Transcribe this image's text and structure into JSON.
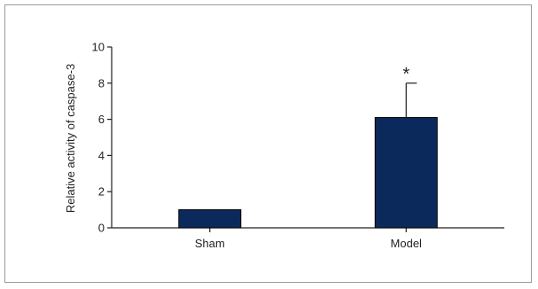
{
  "chart_data": {
    "type": "bar",
    "title": "",
    "xlabel": "",
    "ylabel": "Relative activity of caspase-3",
    "categories": [
      "Sham",
      "Model"
    ],
    "values": [
      1.0,
      6.1
    ],
    "error_upper": [
      0,
      8.0
    ],
    "annotations": [
      "",
      "*"
    ],
    "ylim": [
      0,
      10
    ],
    "yticks": [
      "0",
      "2",
      "4",
      "6",
      "8",
      "10"
    ],
    "grid": false,
    "legend": "none",
    "bar_color": "#0b2a5b",
    "axis_color": "#231f20"
  }
}
